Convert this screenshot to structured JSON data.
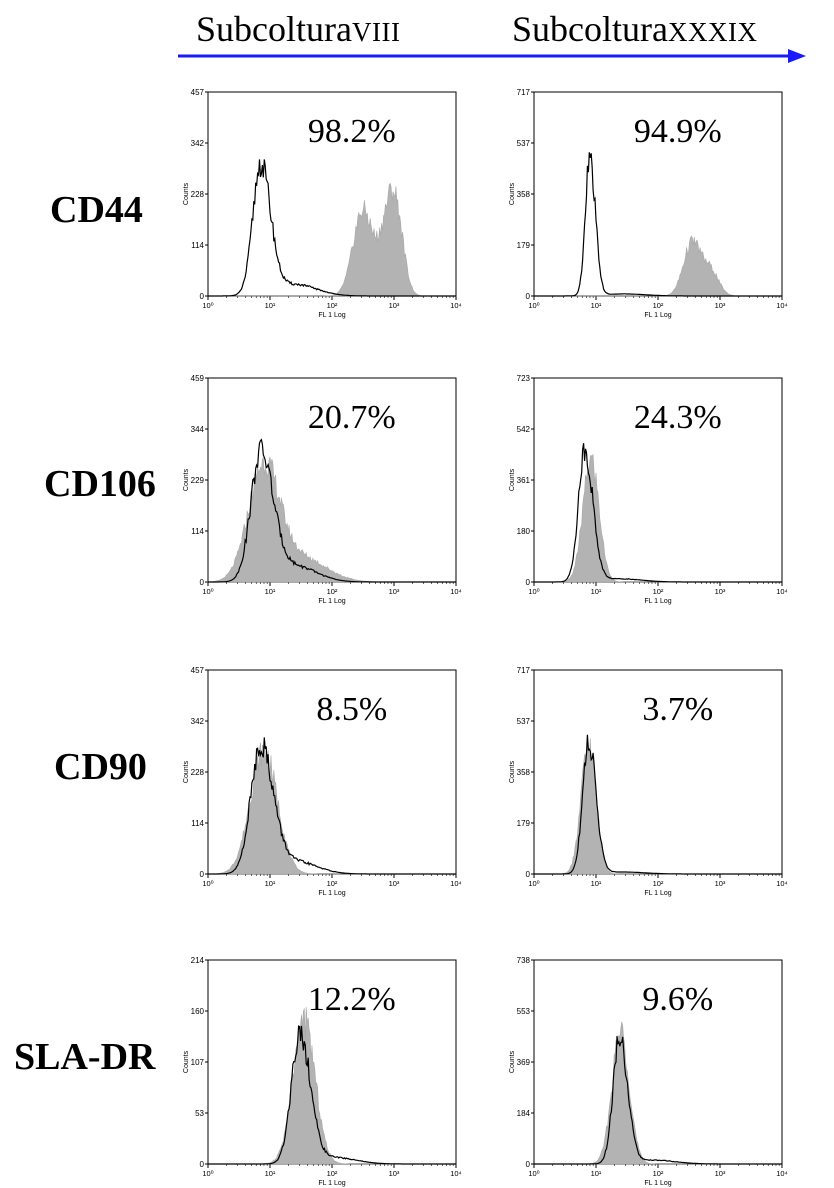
{
  "header": {
    "col1_main": "Subcoltura",
    "col1_sub": "VIII",
    "col2_main": "Subcoltura",
    "col2_sub": "XXXIX",
    "arrow_color": "#1a1aff"
  },
  "rows": [
    {
      "label": "CD44"
    },
    {
      "label": "CD106"
    },
    {
      "label": "CD90"
    },
    {
      "label": "SLA-DR"
    }
  ],
  "chart_data": [
    {
      "type": "area",
      "marker": "CD44",
      "subculture": "VIII",
      "percent": "98.2%",
      "ymax_label": "457",
      "yticks": [
        "0",
        "114",
        "228",
        "342",
        "457"
      ],
      "ylabel": "Counts",
      "xlabel": "FL 1 Log",
      "xticks": [
        "10⁰",
        "10¹",
        "10²",
        "10³",
        "10⁴"
      ],
      "control": {
        "peak_log": 0.85,
        "width": 0.16,
        "height": 0.63,
        "tail": 0.18
      },
      "stained": [
        {
          "peak_log": 2.5,
          "width": 0.16,
          "height": 0.42
        },
        {
          "peak_log": 2.9,
          "width": 0.13,
          "height": 0.32
        },
        {
          "peak_log": 3.05,
          "width": 0.12,
          "height": 0.3
        }
      ]
    },
    {
      "type": "area",
      "marker": "CD44",
      "subculture": "XXXIX",
      "percent": "94.9%",
      "ymax_label": "717",
      "yticks": [
        "0",
        "179",
        "358",
        "537",
        "717"
      ],
      "ylabel": "Counts",
      "xlabel": "FL 1 Log",
      "xticks": [
        "10⁰",
        "10¹",
        "10²",
        "10³",
        "10⁴"
      ],
      "control": {
        "peak_log": 0.9,
        "width": 0.09,
        "height": 0.67,
        "tail": 0.03
      },
      "stained": [
        {
          "peak_log": 2.55,
          "width": 0.14,
          "height": 0.26
        },
        {
          "peak_log": 2.85,
          "width": 0.13,
          "height": 0.12
        }
      ]
    },
    {
      "type": "area",
      "marker": "CD106",
      "subculture": "VIII",
      "percent": "20.7%",
      "ymax_label": "459",
      "yticks": [
        "0",
        "114",
        "229",
        "344",
        "459"
      ],
      "ylabel": "Counts",
      "xlabel": "FL 1 Log",
      "xticks": [
        "10⁰",
        "10¹",
        "10²",
        "10³",
        "10⁴"
      ],
      "control": {
        "peak_log": 0.85,
        "width": 0.2,
        "height": 0.62,
        "tail": 0.25
      },
      "stained": [
        {
          "peak_log": 0.9,
          "width": 0.25,
          "height": 0.55
        },
        {
          "peak_log": 1.5,
          "width": 0.4,
          "height": 0.12
        }
      ]
    },
    {
      "type": "area",
      "marker": "CD106",
      "subculture": "XXXIX",
      "percent": "24.3%",
      "ymax_label": "723",
      "yticks": [
        "0",
        "180",
        "361",
        "542",
        "723"
      ],
      "ylabel": "Counts",
      "xlabel": "FL 1 Log",
      "xticks": [
        "10⁰",
        "10¹",
        "10²",
        "10³",
        "10⁴"
      ],
      "control": {
        "peak_log": 0.82,
        "width": 0.13,
        "height": 0.64,
        "tail": 0.05
      },
      "stained": [
        {
          "peak_log": 0.92,
          "width": 0.13,
          "height": 0.6
        }
      ]
    },
    {
      "type": "area",
      "marker": "CD90",
      "subculture": "VIII",
      "percent": "8.5%",
      "ymax_label": "457",
      "yticks": [
        "0",
        "114",
        "228",
        "342",
        "457"
      ],
      "ylabel": "Counts",
      "xlabel": "FL 1 Log",
      "xticks": [
        "10⁰",
        "10¹",
        "10²",
        "10³",
        "10⁴"
      ],
      "control": {
        "peak_log": 0.85,
        "width": 0.2,
        "height": 0.62,
        "tail": 0.2
      },
      "stained": [
        {
          "peak_log": 0.9,
          "width": 0.22,
          "height": 0.6
        }
      ]
    },
    {
      "type": "area",
      "marker": "CD90",
      "subculture": "XXXIX",
      "percent": "3.7%",
      "ymax_label": "717",
      "yticks": [
        "0",
        "179",
        "358",
        "537",
        "717"
      ],
      "ylabel": "Counts",
      "xlabel": "FL 1 Log",
      "xticks": [
        "10⁰",
        "10¹",
        "10²",
        "10³",
        "10⁴"
      ],
      "control": {
        "peak_log": 0.88,
        "width": 0.12,
        "height": 0.65,
        "tail": 0.03
      },
      "stained": [
        {
          "peak_log": 0.88,
          "width": 0.12,
          "height": 0.63
        }
      ]
    },
    {
      "type": "area",
      "marker": "SLA-DR",
      "subculture": "VIII",
      "percent": "12.2%",
      "ymax_label": "214",
      "yticks": [
        "0",
        "53",
        "107",
        "160",
        "214"
      ],
      "ylabel": "Counts",
      "xlabel": "FL 1 Log",
      "xticks": [
        "10⁰",
        "10¹",
        "10²",
        "10³",
        "10⁴"
      ],
      "control": {
        "peak_log": 1.48,
        "width": 0.17,
        "height": 0.64,
        "tail": 0.1
      },
      "stained": [
        {
          "peak_log": 1.55,
          "width": 0.18,
          "height": 0.7
        }
      ]
    },
    {
      "type": "area",
      "marker": "SLA-DR",
      "subculture": "XXXIX",
      "percent": "9.6%",
      "ymax_label": "738",
      "yticks": [
        "0",
        "184",
        "369",
        "553",
        "738"
      ],
      "ylabel": "Counts",
      "xlabel": "FL 1 Log",
      "xticks": [
        "10⁰",
        "10¹",
        "10²",
        "10³",
        "10⁴"
      ],
      "control": {
        "peak_log": 1.38,
        "width": 0.13,
        "height": 0.62,
        "tail": 0.06
      },
      "stained": [
        {
          "peak_log": 1.4,
          "width": 0.14,
          "height": 0.65
        }
      ]
    }
  ]
}
